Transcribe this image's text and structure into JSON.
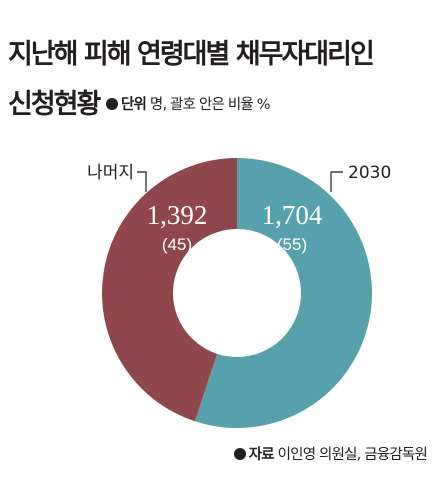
{
  "header": {
    "title_line1": "지난해 피해 연령대별 채무자대리인",
    "title_line2": "신청현황",
    "unit_key": "단위",
    "unit_text": " 명, 괄호 안은 비율 %"
  },
  "footer": {
    "source_key": "자료",
    "source_text": " 이인영 의원실, 금융감독원"
  },
  "colors": {
    "slice_2030": "#57a1ac",
    "slice_rest": "#8f474b",
    "text": "#231f20"
  },
  "chart_data": {
    "type": "pie",
    "donut": true,
    "slices": [
      {
        "label": "2030",
        "value": 1704,
        "value_label": "1,704",
        "percent": 55,
        "percent_label": "(55)"
      },
      {
        "label": "나머지",
        "value": 1392,
        "value_label": "1,392",
        "percent": 45,
        "percent_label": "(45)"
      }
    ]
  }
}
